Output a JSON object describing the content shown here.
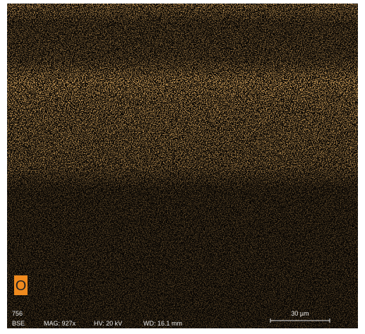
{
  "element_label": "O",
  "info": {
    "counts": "756",
    "detector": "BSE",
    "magnification": "MAG: 927x",
    "voltage": "HV: 20 kV",
    "working_distance": "WD: 16.1 mm"
  },
  "scale_bar": "30 µm"
}
